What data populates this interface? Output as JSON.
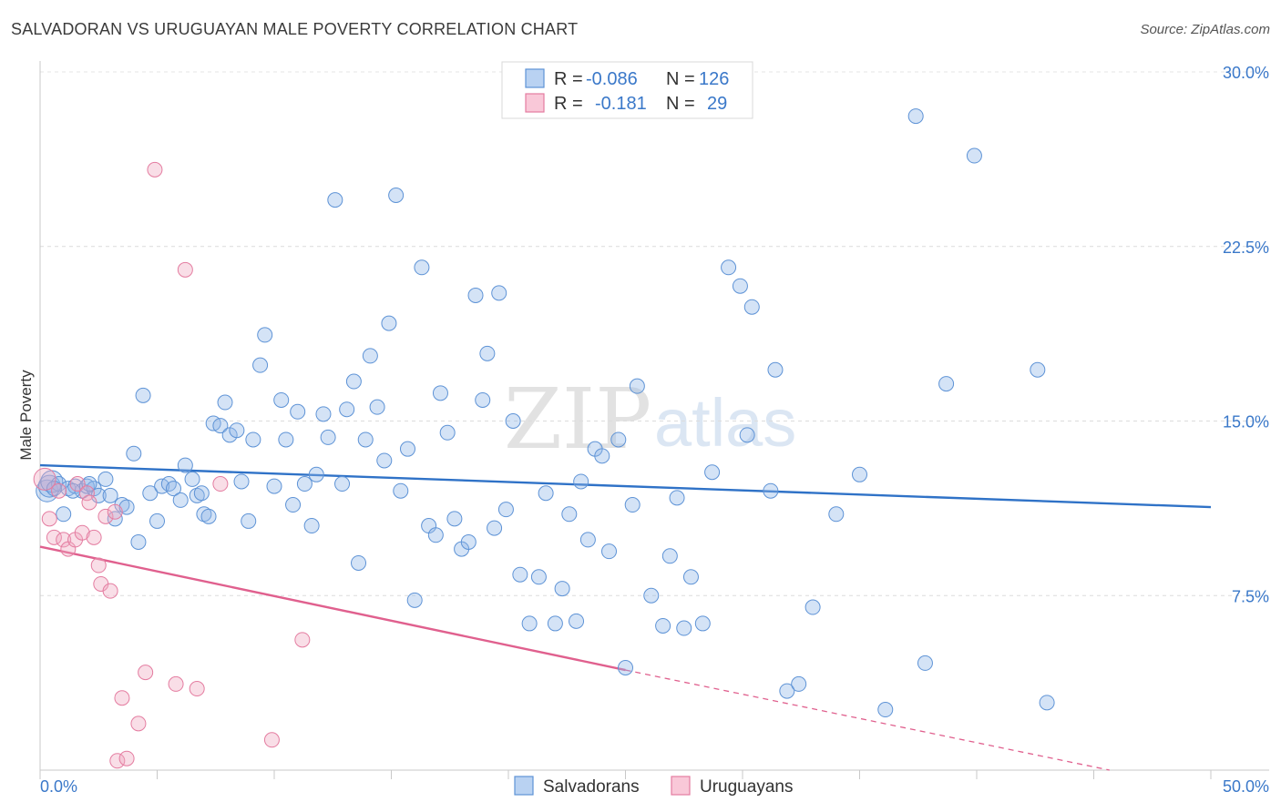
{
  "header": {
    "title": "SALVADORAN VS URUGUAYAN MALE POVERTY CORRELATION CHART",
    "source": "Source: ZipAtlas.com"
  },
  "legend": {
    "rows": [
      {
        "r_label": "R =",
        "r_value": "-0.086",
        "n_label": "N =",
        "n_value": "126",
        "color": "#8fb6e8"
      },
      {
        "r_label": "R =",
        "r_value": "-0.181",
        "n_label": "N =",
        "n_value": "29",
        "color": "#f0a8c0"
      }
    ]
  },
  "bottom_legend": [
    {
      "label": "Salvadorans",
      "color": "#8fb6e8"
    },
    {
      "label": "Uruguayans",
      "color": "#f0a8c0"
    }
  ],
  "watermark": {
    "zip": "ZIP",
    "atlas": "atlas"
  },
  "chart_data": {
    "type": "scatter",
    "title": "SALVADORAN VS URUGUAYAN MALE POVERTY CORRELATION CHART",
    "xlabel": "",
    "ylabel": "Male Poverty",
    "xlim": [
      0,
      50
    ],
    "ylim": [
      0,
      30
    ],
    "x_tick_labels": [
      "0.0%",
      "50.0%"
    ],
    "y_ticks": [
      7.5,
      15.0,
      22.5,
      30.0
    ],
    "y_tick_labels": [
      "7.5%",
      "15.0%",
      "22.5%",
      "30.0%"
    ],
    "grid": true,
    "legend_position": "top-center",
    "series": [
      {
        "name": "Salvadorans",
        "color": "#8fb6e8",
        "stroke": "#5e93d6",
        "trend": {
          "x0": 0,
          "y0": 13.1,
          "x1": 50,
          "y1": 11.3,
          "color": "#2f72c7"
        },
        "points": [
          [
            0.3,
            12.0
          ],
          [
            0.4,
            12.2
          ],
          [
            0.5,
            12.4
          ],
          [
            0.8,
            12.3
          ],
          [
            1.0,
            11.0
          ],
          [
            1.2,
            12.1
          ],
          [
            1.5,
            12.2
          ],
          [
            1.8,
            12.0
          ],
          [
            2.0,
            12.2
          ],
          [
            2.3,
            12.1
          ],
          [
            2.5,
            11.8
          ],
          [
            2.8,
            12.5
          ],
          [
            3.0,
            11.8
          ],
          [
            3.2,
            10.8
          ],
          [
            3.5,
            11.4
          ],
          [
            3.7,
            11.3
          ],
          [
            4.0,
            13.6
          ],
          [
            4.2,
            9.8
          ],
          [
            4.4,
            16.1
          ],
          [
            4.7,
            11.9
          ],
          [
            5.0,
            10.7
          ],
          [
            5.2,
            12.2
          ],
          [
            5.5,
            12.3
          ],
          [
            5.7,
            12.1
          ],
          [
            6.0,
            11.6
          ],
          [
            6.2,
            13.1
          ],
          [
            6.5,
            12.5
          ],
          [
            6.7,
            11.8
          ],
          [
            7.0,
            11.0
          ],
          [
            7.2,
            10.9
          ],
          [
            7.4,
            14.9
          ],
          [
            7.7,
            14.8
          ],
          [
            7.9,
            15.8
          ],
          [
            8.1,
            14.4
          ],
          [
            8.4,
            14.6
          ],
          [
            8.6,
            12.4
          ],
          [
            8.9,
            10.7
          ],
          [
            9.1,
            14.2
          ],
          [
            9.4,
            17.4
          ],
          [
            9.6,
            18.7
          ],
          [
            10.0,
            12.2
          ],
          [
            10.3,
            15.9
          ],
          [
            10.5,
            14.2
          ],
          [
            10.8,
            11.4
          ],
          [
            11.0,
            15.4
          ],
          [
            11.3,
            12.3
          ],
          [
            11.6,
            10.5
          ],
          [
            11.8,
            12.7
          ],
          [
            12.1,
            15.3
          ],
          [
            12.3,
            14.3
          ],
          [
            12.6,
            24.5
          ],
          [
            12.9,
            12.3
          ],
          [
            13.1,
            15.5
          ],
          [
            13.4,
            16.7
          ],
          [
            13.6,
            8.9
          ],
          [
            13.9,
            14.2
          ],
          [
            14.1,
            17.8
          ],
          [
            14.4,
            15.6
          ],
          [
            14.7,
            13.3
          ],
          [
            14.9,
            19.2
          ],
          [
            15.2,
            24.7
          ],
          [
            15.4,
            12.0
          ],
          [
            15.7,
            13.8
          ],
          [
            16.0,
            7.3
          ],
          [
            16.3,
            21.6
          ],
          [
            16.6,
            10.5
          ],
          [
            16.9,
            10.1
          ],
          [
            17.1,
            16.2
          ],
          [
            17.4,
            14.5
          ],
          [
            17.7,
            10.8
          ],
          [
            18.0,
            9.5
          ],
          [
            18.3,
            9.8
          ],
          [
            18.6,
            20.4
          ],
          [
            18.9,
            15.9
          ],
          [
            19.1,
            17.9
          ],
          [
            19.4,
            10.4
          ],
          [
            19.6,
            20.5
          ],
          [
            19.9,
            11.2
          ],
          [
            20.2,
            15.0
          ],
          [
            20.5,
            8.4
          ],
          [
            20.9,
            6.3
          ],
          [
            21.3,
            8.3
          ],
          [
            21.6,
            11.9
          ],
          [
            22.0,
            6.3
          ],
          [
            22.3,
            7.8
          ],
          [
            22.6,
            11.0
          ],
          [
            22.9,
            6.4
          ],
          [
            23.1,
            12.4
          ],
          [
            23.4,
            9.9
          ],
          [
            23.7,
            13.8
          ],
          [
            24.0,
            13.5
          ],
          [
            24.3,
            9.4
          ],
          [
            24.7,
            14.2
          ],
          [
            25.0,
            4.4
          ],
          [
            25.3,
            11.4
          ],
          [
            25.5,
            16.5
          ],
          [
            26.1,
            7.5
          ],
          [
            26.6,
            6.2
          ],
          [
            26.9,
            9.2
          ],
          [
            27.2,
            11.7
          ],
          [
            27.5,
            6.1
          ],
          [
            27.8,
            8.3
          ],
          [
            28.3,
            6.3
          ],
          [
            28.7,
            12.8
          ],
          [
            29.4,
            21.6
          ],
          [
            29.9,
            20.8
          ],
          [
            30.2,
            14.4
          ],
          [
            30.4,
            19.9
          ],
          [
            31.2,
            12.0
          ],
          [
            31.4,
            17.2
          ],
          [
            31.9,
            3.4
          ],
          [
            32.4,
            3.7
          ],
          [
            33.0,
            7.0
          ],
          [
            34.0,
            11.0
          ],
          [
            35.0,
            12.7
          ],
          [
            36.1,
            2.6
          ],
          [
            37.4,
            28.1
          ],
          [
            37.8,
            4.6
          ],
          [
            38.7,
            16.6
          ],
          [
            39.9,
            26.4
          ],
          [
            42.6,
            17.2
          ],
          [
            43.0,
            2.9
          ],
          [
            0.6,
            12.1
          ],
          [
            1.4,
            12.0
          ],
          [
            2.1,
            12.3
          ],
          [
            6.9,
            11.9
          ]
        ]
      },
      {
        "name": "Uruguayans",
        "color": "#f0a8c0",
        "stroke": "#e47ca0",
        "trend": {
          "x0": 0,
          "y0": 9.6,
          "x1": 25,
          "y1": 4.3,
          "dash_to_x": 50,
          "dash_to_y": -0.9,
          "color": "#e0608e"
        },
        "points": [
          [
            0.2,
            12.5
          ],
          [
            0.4,
            10.8
          ],
          [
            0.6,
            10.0
          ],
          [
            0.8,
            12.0
          ],
          [
            1.0,
            9.9
          ],
          [
            1.2,
            9.5
          ],
          [
            1.5,
            9.9
          ],
          [
            1.6,
            12.3
          ],
          [
            1.8,
            10.2
          ],
          [
            2.0,
            11.9
          ],
          [
            2.1,
            11.5
          ],
          [
            2.3,
            10.0
          ],
          [
            2.5,
            8.8
          ],
          [
            2.6,
            8.0
          ],
          [
            2.8,
            10.9
          ],
          [
            3.0,
            7.7
          ],
          [
            3.2,
            11.1
          ],
          [
            3.3,
            0.4
          ],
          [
            3.5,
            3.1
          ],
          [
            3.7,
            0.5
          ],
          [
            4.2,
            2.0
          ],
          [
            4.5,
            4.2
          ],
          [
            4.9,
            25.8
          ],
          [
            5.8,
            3.7
          ],
          [
            6.2,
            21.5
          ],
          [
            6.7,
            3.5
          ],
          [
            7.7,
            12.3
          ],
          [
            9.9,
            1.3
          ],
          [
            11.2,
            5.6
          ]
        ]
      }
    ]
  }
}
